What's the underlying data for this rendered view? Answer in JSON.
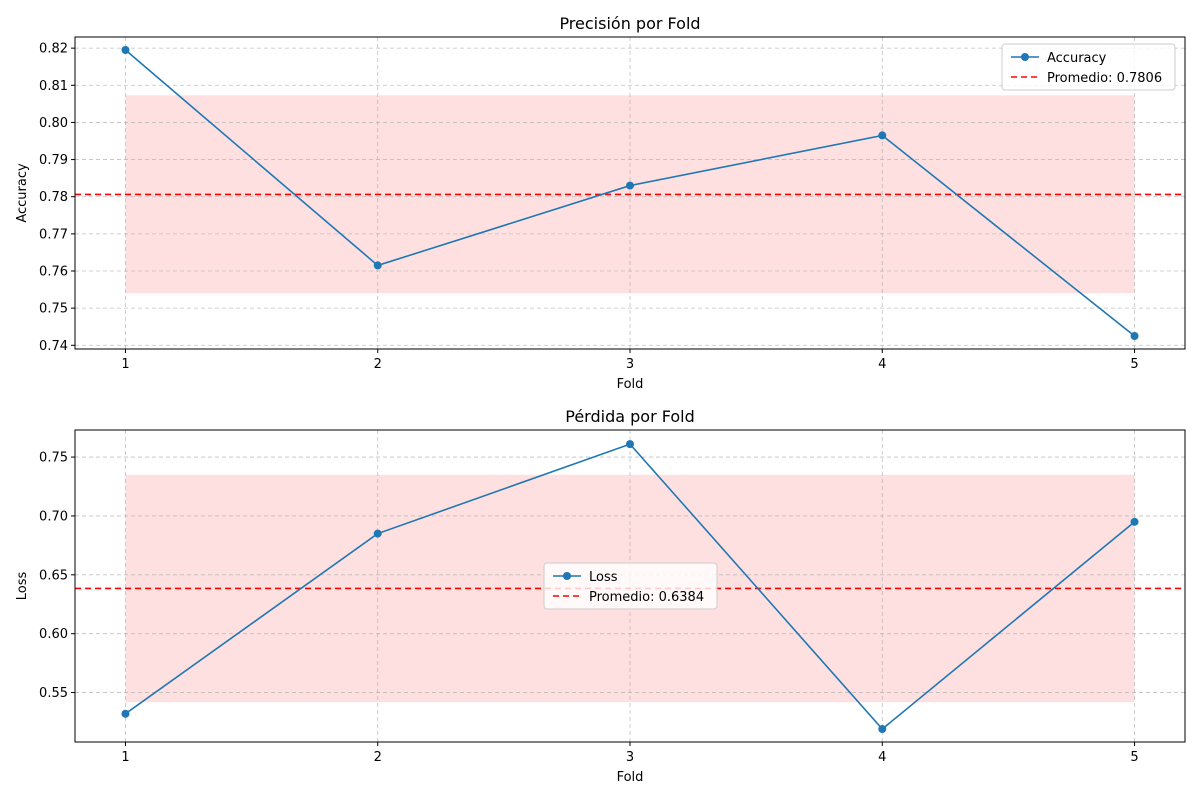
{
  "chart_data": [
    {
      "type": "line",
      "title": "Precisión por Fold",
      "xlabel": "Fold",
      "ylabel": "Accuracy",
      "x": [
        1,
        2,
        3,
        4,
        5
      ],
      "x_ticks": [
        "1",
        "2",
        "3",
        "4",
        "5"
      ],
      "xlim": [
        0.8,
        5.2
      ],
      "ylim": [
        0.739,
        0.823
      ],
      "y_ticks": [
        "0.74",
        "0.75",
        "0.76",
        "0.77",
        "0.78",
        "0.79",
        "0.80",
        "0.81",
        "0.82"
      ],
      "y_tick_values": [
        0.74,
        0.75,
        0.76,
        0.77,
        0.78,
        0.79,
        0.8,
        0.81,
        0.82
      ],
      "series": [
        {
          "name": "Accuracy",
          "values": [
            0.8195,
            0.7615,
            0.783,
            0.7965,
            0.7425
          ],
          "color": "#1f77b4"
        }
      ],
      "mean": {
        "value": 0.7806,
        "label": "Promedio: 0.7806",
        "color": "#ff0000"
      },
      "band": {
        "low": 0.754,
        "high": 0.8073,
        "color": "#ffcccc"
      },
      "grid": true,
      "legend_position": "top-right"
    },
    {
      "type": "line",
      "title": "Pérdida por Fold",
      "xlabel": "Fold",
      "ylabel": "Loss",
      "x": [
        1,
        2,
        3,
        4,
        5
      ],
      "x_ticks": [
        "1",
        "2",
        "3",
        "4",
        "5"
      ],
      "xlim": [
        0.8,
        5.2
      ],
      "ylim": [
        0.508,
        0.773
      ],
      "y_ticks": [
        "0.55",
        "0.60",
        "0.65",
        "0.70",
        "0.75"
      ],
      "y_tick_values": [
        0.55,
        0.6,
        0.65,
        0.7,
        0.75
      ],
      "series": [
        {
          "name": "Loss",
          "values": [
            0.532,
            0.685,
            0.761,
            0.519,
            0.695
          ],
          "color": "#1f77b4"
        }
      ],
      "mean": {
        "value": 0.6384,
        "label": "Promedio: 0.6384",
        "color": "#ff0000"
      },
      "band": {
        "low": 0.5418,
        "high": 0.735,
        "color": "#ffcccc"
      },
      "grid": true,
      "legend_position": "center"
    }
  ]
}
